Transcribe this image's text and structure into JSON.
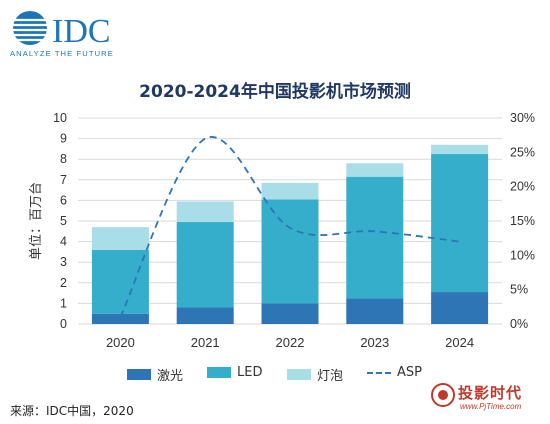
{
  "logo": {
    "brand": "IDC",
    "tagline": "ANALYZE THE FUTURE"
  },
  "colors": {
    "laser": "#2e75b6",
    "led": "#35aecb",
    "lamp": "#a9dde8",
    "asp": "#2e75b6",
    "title": "#1f3864",
    "logo": "#1b75bb"
  },
  "chart_data": {
    "type": "bar",
    "stacked": true,
    "title": "2020-2024年中国投影机市场预测",
    "categories": [
      "2020",
      "2021",
      "2022",
      "2023",
      "2024"
    ],
    "ylabel": "单位：百万台",
    "ylim": [
      0,
      10
    ],
    "yticks": [
      "0",
      "1",
      "2",
      "3",
      "4",
      "5",
      "6",
      "7",
      "8",
      "9",
      "10"
    ],
    "y2lim": [
      0,
      30
    ],
    "y2ticks": [
      "0%",
      "5%",
      "10%",
      "15%",
      "20%",
      "25%",
      "30%"
    ],
    "grid": true,
    "series": [
      {
        "name": "激光",
        "values": [
          0.5,
          0.8,
          1.0,
          1.25,
          1.55
        ]
      },
      {
        "name": "LED",
        "values": [
          3.1,
          4.15,
          5.05,
          5.9,
          6.7
        ]
      },
      {
        "name": "灯泡",
        "values": [
          1.1,
          1.0,
          0.8,
          0.65,
          0.45
        ]
      }
    ],
    "line_series": {
      "name": "ASP",
      "axis": "secondary",
      "values": [
        1.0,
        27.0,
        14.0,
        13.5,
        12.0
      ]
    },
    "legend_position": "bottom"
  },
  "source": "来源：IDC中国，2020",
  "watermark": {
    "text": "投影时代",
    "url": "www.PjTime.com"
  }
}
